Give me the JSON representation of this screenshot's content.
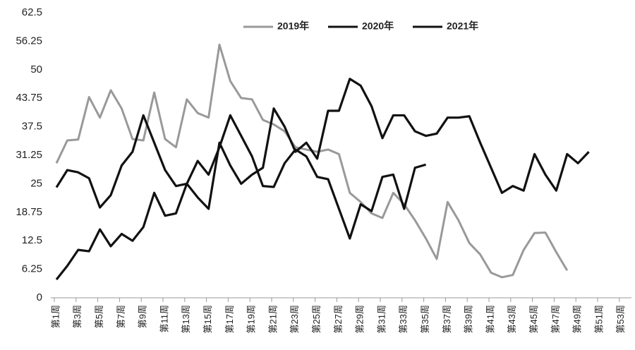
{
  "chart_data": {
    "type": "line",
    "categories": [
      "第1周",
      null,
      "第3周",
      null,
      "第5周",
      null,
      "第7周",
      null,
      "第9周",
      null,
      "第11周",
      null,
      "第13周",
      null,
      "第15周",
      null,
      "第17周",
      null,
      "第19周",
      null,
      "第21周",
      null,
      "第23周",
      null,
      "第25周",
      null,
      "第27周",
      null,
      "第29周",
      null,
      "第31周",
      null,
      "第33周",
      null,
      "第35周",
      null,
      "第37周",
      null,
      "第39周",
      null,
      "第41周",
      null,
      "第43周",
      null,
      "第45周",
      null,
      "第47周",
      null,
      "第49周",
      null,
      "第51周",
      null,
      "第53周"
    ],
    "series": [
      {
        "name": "2019年",
        "color": "#999999",
        "values": [
          29.5,
          34.5,
          34.7,
          44,
          39.5,
          45.5,
          41.5,
          34.8,
          34.5,
          45,
          34.8,
          33,
          43.5,
          40.5,
          39.5,
          55.5,
          47.5,
          43.8,
          43.5,
          39,
          38,
          36.5,
          33,
          32.5,
          32,
          32.5,
          31.5,
          23,
          21,
          18.5,
          17.5,
          23,
          20.5,
          17,
          13,
          8.5,
          21,
          17,
          12,
          9.5,
          5.5,
          4.5,
          5,
          10.5,
          14.2,
          14.3,
          10,
          6,
          null,
          null,
          null,
          null,
          null
        ]
      },
      {
        "name": "2020年",
        "color": "#111111",
        "values": [
          24.2,
          28,
          27.5,
          26.2,
          19.8,
          22.5,
          29,
          32,
          40,
          34,
          28,
          24.5,
          25,
          22,
          19.5,
          34,
          29,
          25,
          27,
          28.5,
          41.5,
          37.5,
          32,
          34,
          30.5,
          41,
          41,
          48,
          46.5,
          42,
          35,
          40,
          40,
          36.5,
          35.5,
          36,
          39.5,
          39.5,
          39.8,
          34,
          28.5,
          23,
          24.5,
          23.5,
          31.5,
          27,
          23.5,
          31.5,
          29.5,
          32,
          null,
          null,
          null
        ]
      },
      {
        "name": "2021年",
        "color": "#111111",
        "values": [
          4,
          7,
          10.5,
          10.2,
          15,
          11.3,
          14,
          12.5,
          15.5,
          23,
          18,
          18.5,
          25,
          30,
          27,
          33,
          40,
          35.5,
          31,
          24.5,
          24.3,
          29.5,
          32.5,
          31,
          26.5,
          26,
          19.5,
          13,
          20.5,
          19,
          26.5,
          27,
          19.5,
          28.5,
          29.2,
          null,
          null,
          null,
          null,
          null,
          null,
          null,
          null,
          null,
          null,
          null,
          null,
          null,
          null,
          null,
          null,
          null,
          null
        ]
      }
    ],
    "ylim": [
      0,
      62.5
    ],
    "yticks": [
      0,
      6.25,
      12.5,
      18.75,
      25,
      31.25,
      37.5,
      43.75,
      50,
      56.25,
      62.5
    ],
    "grid": false,
    "legend": "top"
  }
}
